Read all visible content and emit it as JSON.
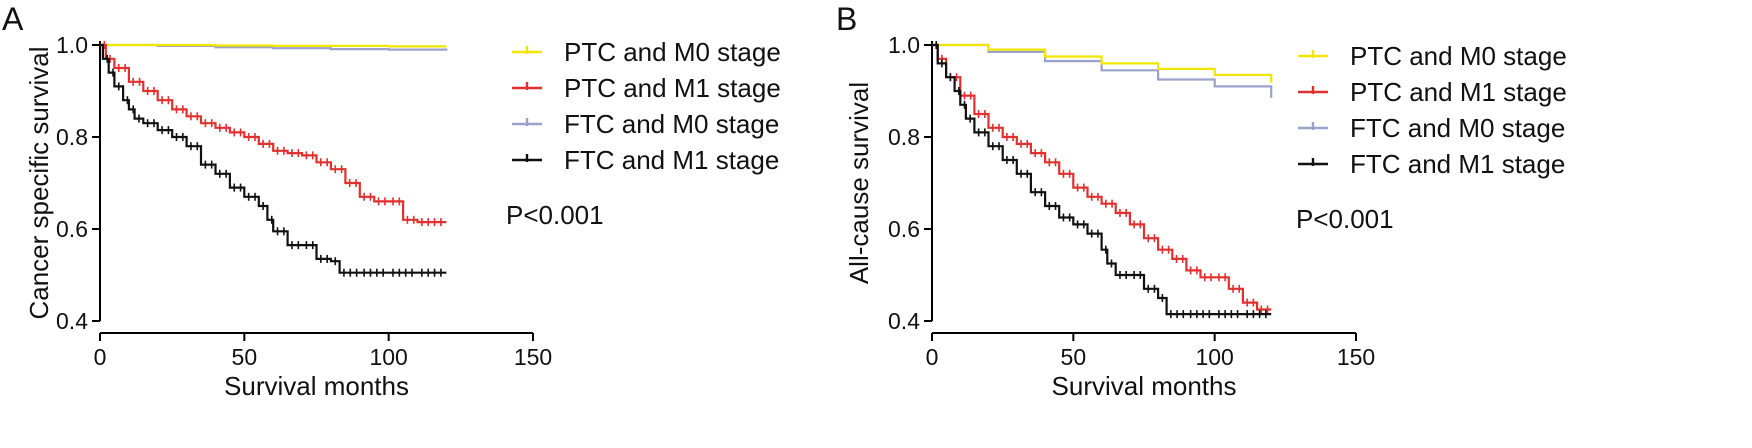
{
  "colors": {
    "ptc_m0": "#f2e600",
    "ptc_m1": "#e03030",
    "ftc_m0": "#9aa2cc",
    "ftc_m1": "#111111"
  },
  "chart_data": [
    {
      "type": "line",
      "panel": "A",
      "title": "",
      "xlabel": "Survival months",
      "ylabel": "Cancer specific survival",
      "xlim": [
        0,
        150
      ],
      "ylim": [
        0.4,
        1.0
      ],
      "xticks": [
        "0",
        "50",
        "100",
        "150"
      ],
      "yticks": [
        "0.4",
        "0.6",
        "0.8",
        "1.0"
      ],
      "annotation": "P<0.001",
      "legend_position": "right",
      "series": [
        {
          "name": "PTC and M0 stage",
          "color_key": "ptc_m0",
          "x": [
            0,
            20,
            40,
            60,
            80,
            100,
            120
          ],
          "y": [
            1.0,
            1.0,
            0.999,
            0.998,
            0.998,
            0.997,
            0.997
          ]
        },
        {
          "name": "PTC and M1 stage",
          "color_key": "ptc_m1",
          "x": [
            0,
            2,
            5,
            10,
            15,
            20,
            25,
            30,
            35,
            40,
            45,
            50,
            55,
            60,
            65,
            70,
            75,
            80,
            85,
            90,
            95,
            100,
            105,
            110,
            120
          ],
          "y": [
            1.0,
            0.97,
            0.95,
            0.92,
            0.9,
            0.88,
            0.86,
            0.845,
            0.83,
            0.82,
            0.81,
            0.8,
            0.785,
            0.77,
            0.765,
            0.76,
            0.745,
            0.73,
            0.7,
            0.67,
            0.66,
            0.66,
            0.62,
            0.615,
            0.615
          ]
        },
        {
          "name": "FTC and M0 stage",
          "color_key": "ftc_m0",
          "x": [
            0,
            20,
            40,
            60,
            80,
            100,
            120
          ],
          "y": [
            1.0,
            0.998,
            0.995,
            0.993,
            0.991,
            0.99,
            0.988
          ]
        },
        {
          "name": "FTC and M1 stage",
          "color_key": "ftc_m1",
          "x": [
            0,
            1,
            3,
            5,
            8,
            10,
            12,
            15,
            20,
            25,
            30,
            35,
            40,
            45,
            50,
            55,
            58,
            60,
            65,
            70,
            75,
            80,
            83,
            90,
            100,
            110,
            120
          ],
          "y": [
            1.0,
            0.97,
            0.94,
            0.91,
            0.88,
            0.86,
            0.84,
            0.83,
            0.815,
            0.8,
            0.78,
            0.74,
            0.72,
            0.69,
            0.67,
            0.65,
            0.62,
            0.595,
            0.565,
            0.565,
            0.535,
            0.53,
            0.505,
            0.505,
            0.505,
            0.505,
            0.505
          ]
        }
      ]
    },
    {
      "type": "line",
      "panel": "B",
      "title": "",
      "xlabel": "Survival months",
      "ylabel": "All-cause survival",
      "xlim": [
        0,
        150
      ],
      "ylim": [
        0.4,
        1.0
      ],
      "xticks": [
        "0",
        "50",
        "100",
        "150"
      ],
      "yticks": [
        "0.4",
        "0.6",
        "0.8",
        "1.0"
      ],
      "annotation": "P<0.001",
      "legend_position": "right",
      "series": [
        {
          "name": "PTC and M0 stage",
          "color_key": "ptc_m0",
          "x": [
            0,
            20,
            40,
            60,
            80,
            100,
            120
          ],
          "y": [
            1.0,
            0.99,
            0.975,
            0.96,
            0.948,
            0.935,
            0.918
          ]
        },
        {
          "name": "PTC and M1 stage",
          "color_key": "ptc_m1",
          "x": [
            0,
            2,
            5,
            10,
            15,
            20,
            25,
            30,
            35,
            40,
            45,
            50,
            55,
            60,
            65,
            70,
            75,
            80,
            85,
            90,
            95,
            100,
            105,
            110,
            115,
            120
          ],
          "y": [
            1.0,
            0.97,
            0.93,
            0.89,
            0.85,
            0.82,
            0.8,
            0.785,
            0.765,
            0.745,
            0.72,
            0.69,
            0.67,
            0.655,
            0.635,
            0.61,
            0.58,
            0.555,
            0.535,
            0.51,
            0.495,
            0.495,
            0.47,
            0.44,
            0.425,
            0.425
          ]
        },
        {
          "name": "FTC and M0 stage",
          "color_key": "ftc_m0",
          "x": [
            0,
            20,
            40,
            60,
            80,
            100,
            120
          ],
          "y": [
            1.0,
            0.985,
            0.965,
            0.945,
            0.925,
            0.91,
            0.885
          ]
        },
        {
          "name": "FTC and M1 stage",
          "color_key": "ftc_m1",
          "x": [
            0,
            2,
            5,
            8,
            10,
            12,
            15,
            20,
            25,
            30,
            35,
            40,
            45,
            50,
            55,
            60,
            62,
            65,
            70,
            75,
            80,
            83,
            90,
            100,
            110,
            120
          ],
          "y": [
            1.0,
            0.96,
            0.93,
            0.9,
            0.87,
            0.84,
            0.81,
            0.78,
            0.75,
            0.72,
            0.68,
            0.65,
            0.625,
            0.61,
            0.59,
            0.555,
            0.525,
            0.5,
            0.5,
            0.47,
            0.45,
            0.415,
            0.415,
            0.415,
            0.415,
            0.415
          ]
        }
      ]
    }
  ]
}
